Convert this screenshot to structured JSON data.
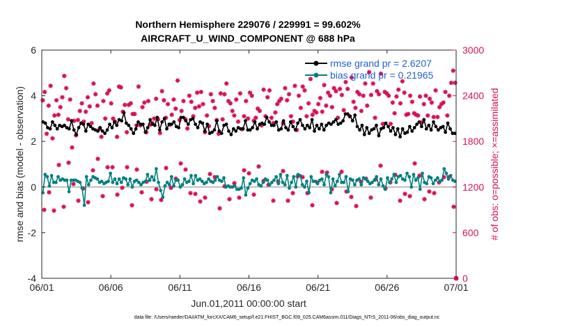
{
  "colors": {
    "rmse": "#000000",
    "bias": "#00807f",
    "obs": "#d6115a",
    "zero_line": "#bdbdbd",
    "legend_text": "#1f5fd6"
  },
  "chart_data": {
    "type": "line",
    "title_line1": "Northern Hemisphere 229076 / 229991 = 99.602%",
    "title_line2": "AIRCRAFT_U_WIND_COMPONENT @ 688 hPa",
    "xlabel": "Jun.01,2011 00:00:00 start",
    "ylabel_left": "rmse and bias (model - observation)",
    "ylabel_right": "# of obs: o=possible; ×=assimilated",
    "x_tick_labels": [
      "06/01",
      "06/06",
      "06/11",
      "06/16",
      "06/21",
      "06/26",
      "07/01"
    ],
    "x_range_days": [
      0,
      30
    ],
    "y_left_ticks": [
      "-4",
      "-2",
      "0",
      "2",
      "4",
      "6"
    ],
    "y_left_range": [
      -4,
      6
    ],
    "y_right_ticks": [
      "0",
      "600",
      "1200",
      "1800",
      "2400",
      "3000"
    ],
    "y_right_range": [
      0,
      3000
    ],
    "grid": false,
    "legend_position": "top-right",
    "legend": [
      "rmse grand pr = 2.6207",
      "bias grand pr = 0.21965"
    ],
    "series": [
      {
        "name": "rmse grand pr = 2.6207",
        "axis": "left",
        "values": [
          2.85,
          2.8,
          2.6,
          2.55,
          2.85,
          2.7,
          2.55,
          2.7,
          2.65,
          2.7,
          2.6,
          2.55,
          2.9,
          2.5,
          2.3,
          2.6,
          2.8,
          2.75,
          2.45,
          2.75,
          2.65,
          2.55,
          2.5,
          2.45,
          2.6,
          2.45,
          2.35,
          2.5,
          2.75,
          2.6,
          2.85,
          2.7,
          2.95,
          2.9,
          3.25,
          2.8,
          2.7,
          2.55,
          2.35,
          2.55,
          2.85,
          2.75,
          2.75,
          2.4,
          2.6,
          2.95,
          2.75,
          2.7,
          3.05,
          2.5,
          2.85,
          3.0,
          2.55,
          2.75,
          2.75,
          2.85,
          2.65,
          2.6,
          3.05,
          3.05,
          2.9,
          2.75,
          2.95,
          3.0,
          2.75,
          2.6,
          2.85,
          2.8,
          2.45,
          2.75,
          2.35,
          2.4,
          2.5,
          2.9,
          2.45,
          2.35,
          2.7,
          2.75,
          2.45,
          2.3,
          2.55,
          2.45,
          2.6,
          2.55,
          2.55,
          2.9,
          2.5,
          2.5,
          2.6,
          2.85,
          2.55,
          2.75,
          2.8,
          2.75,
          3.05,
          2.85,
          2.7,
          2.7,
          2.85,
          2.5,
          2.55,
          2.9,
          2.6,
          2.5,
          2.85,
          2.65,
          2.5,
          2.8,
          2.95,
          2.7,
          2.55,
          2.7,
          2.6,
          2.95,
          2.45,
          2.7,
          2.55,
          2.75,
          2.5,
          2.7,
          2.8,
          2.75,
          2.85,
          2.95,
          2.75,
          2.8,
          2.9,
          3.2,
          3.2,
          3.1,
          2.9,
          3.15,
          2.65,
          2.5,
          2.7,
          2.3,
          2.6,
          2.35,
          2.5,
          2.55,
          2.7,
          2.25,
          2.55,
          2.6,
          2.8,
          2.65,
          2.45,
          2.6,
          2.3,
          2.55,
          2.2,
          2.55,
          2.35,
          2.4,
          2.65,
          2.45,
          2.6,
          2.75,
          2.85,
          2.65,
          2.95,
          2.55,
          2.7,
          2.5,
          2.85,
          2.65,
          2.5,
          2.6,
          2.65,
          2.4,
          2.8,
          2.55,
          2.35,
          2.35
        ]
      },
      {
        "name": "bias grand pr = 0.21965",
        "axis": "left",
        "values": [
          -0.25,
          0.55,
          0.45,
          0.05,
          0.5,
          0.2,
          0.2,
          0.45,
          0.3,
          0.35,
          0.3,
          0.3,
          -0.2,
          0.3,
          0.3,
          0.3,
          0.25,
          0.2,
          -0.05,
          -0.8,
          0.45,
          0.1,
          0.3,
          0.45,
          0.4,
          0.35,
          0.2,
          0.25,
          0.15,
          0.2,
          0.25,
          0.6,
          0.2,
          0.35,
          0.15,
          0.35,
          0.2,
          0.4,
          0.35,
          0.1,
          0.35,
          0.0,
          0.25,
          0.3,
          0.2,
          0.1,
          0.2,
          0.25,
          0.55,
          0.3,
          0.45,
          0.3,
          0.8,
          0.2,
          -0.15,
          -0.45,
          0.05,
          0.2,
          0.1,
          0.45,
          0.05,
          0.3,
          0.3,
          0.0,
          0.1,
          0.35,
          0.2,
          0.25,
          0.5,
          0.15,
          0.5,
          0.3,
          0.35,
          0.25,
          0.15,
          0.2,
          0.35,
          0.25,
          0.2,
          0.3,
          0.45,
          0.3,
          0.25,
          0.4,
          0.0,
          0.05,
          0.0,
          0.0,
          0.05,
          -0.1,
          -0.1,
          -0.05,
          0.4,
          -0.35,
          -0.05,
          0.15,
          0.3,
          0.25,
          0.35,
          0.1,
          0.05,
          0.2,
          0.35,
          0.3,
          0.1,
          0.2,
          0.3,
          0.45,
          0.15,
          0.55,
          0.2,
          0.1,
          0.5,
          -0.05,
          0.2,
          0.45,
          0.0,
          0.55,
          0.5,
          0.1,
          0.0,
          0.25,
          -0.25,
          0.45,
          0.25,
          0.25,
          0.15,
          0.3,
          0.35,
          0.1,
          0.55,
          0.45,
          -0.25,
          0.35,
          0.05,
          0.25,
          0.55,
          0.2,
          0.2,
          0.45,
          -0.2,
          0.35,
          0.3,
          0.1,
          0.3,
          0.35,
          0.1,
          0.4,
          0.35,
          0.25,
          0.15,
          0.2,
          0.3,
          0.45,
          0.1,
          0.35,
          0.05,
          -0.1,
          0.4,
          0.2,
          0.35,
          0.55,
          0.2,
          0.45,
          0.5,
          0.35,
          0.3,
          0.6,
          0.45,
          0.0,
          0.55,
          0.3,
          0.4,
          -0.1,
          0.6,
          0.2,
          0.15,
          0.45,
          0.4,
          0.15,
          0.3,
          0.4,
          0.25,
          0.3,
          0.8,
          0.6,
          0.35,
          0.5,
          0.3,
          0.25
        ]
      },
      {
        "name": "",
        "axis": "right",
        "marker": "asterisk",
        "values": [
          2340,
          2450,
          1900,
          2270,
          2530,
          1840,
          2140,
          2340,
          2150,
          2250,
          2380,
          2660,
          2500,
          2090,
          2350,
          1720,
          2070,
          1880,
          2080,
          2200,
          2300,
          2060,
          2190,
          2380,
          2260,
          2040,
          2560,
          2420,
          2270,
          1960,
          1860,
          2330,
          2100,
          2430,
          2470,
          2300,
          2100,
          2060,
          1860,
          2520,
          2510,
          2190,
          2280,
          1920,
          2280,
          2300,
          2160,
          2160,
          2010,
          2520,
          2010,
          2250,
          2310,
          1920,
          2330,
          2020,
          2040,
          2100,
          2360,
          2090,
          1910,
          2460,
          2340,
          2110,
          2290,
          2020,
          2150,
          2350,
          2230,
          2600,
          2080,
          2200,
          2330,
          2090,
          1970,
          2400,
          2320,
          2130,
          2240,
          2440,
          2260,
          2450,
          2290,
          1920,
          2140,
          2000,
          2420,
          2330,
          2240,
          2080,
          1900,
          2430,
          2090,
          2420,
          2560,
          2330,
          2300,
          2200,
          2140,
          2350,
          2060,
          2430,
          1960,
          2130,
          2330,
          2100,
          2440,
          2400,
          2070,
          2110,
          2230,
          2200,
          2010,
          2480,
          2130,
          2380,
          2470,
          2110,
          2040,
          2180,
          2290,
          2330,
          2360,
          2040,
          2500,
          2340,
          2420,
          2130,
          2060,
          2530,
          1950,
          2400,
          2240,
          2520,
          2470,
          2130,
          2300,
          2620,
          2150,
          2200,
          2180,
          2290,
          2370,
          2190,
          2540,
          2270,
          2440,
          2400,
          2250,
          2500,
          2460,
          2110,
          2490,
          2410,
          2210,
          2580,
          2490,
          2130,
          2640,
          2320,
          2240,
          2450,
          2420,
          2200,
          2400,
          2560,
          2270,
          2710,
          2410,
          2560,
          2110,
          2460,
          2420,
          2690,
          2030,
          2450,
          2430,
          2400,
          2030,
          2310,
          2170,
          2390,
          2480,
          2300,
          2590,
          2440,
          2150,
          2160,
          2400,
          2320,
          2170,
          2150,
          2140,
          2390,
          2050,
          2290,
          2400,
          2140,
          2360,
          2310,
          2120,
          2470,
          2120,
          2250,
          2290,
          2310,
          2450,
          2140,
          2400,
          2570,
          2730,
          2570
        ]
      },
      {
        "name": "",
        "axis": "right",
        "marker": "asterisk-low",
        "values": [
          900,
          1130,
          890,
          1490,
          940,
          1520,
          1240,
          1020,
          1180,
          1000,
          1420,
          1570,
          1080,
          1460,
          1460,
          1100,
          1190,
          1460,
          960,
          1430,
          1130,
          1270,
          1040,
          1170,
          1030,
          1450,
          1190,
          1310,
          1510,
          1430,
          1120,
          1110,
          1010,
          1060,
          1370,
          1330,
          920,
          1210,
          1040,
          1250,
          1060,
          1420,
          1380,
          1100,
          1470,
          1280,
          1230,
          1020,
          1270,
          1410,
          1020,
          1120,
          1340,
          1330,
          1120,
          960,
          1260,
          1400,
          1390,
          1170,
          990,
          1400,
          1140,
          1070,
          950,
          1270,
          1310,
          1060,
          1300,
          1480,
          1180,
          1260,
          1360,
          1020,
          1110,
          1080,
          1510,
          1350,
          1040,
          1140,
          1120,
          1260,
          1330,
          1330,
          940
        ]
      }
    ]
  },
  "footnote": "data file: /Users/raeder/DAI/ATM_forcXX/CAM6_setup/f.e21.FHIST_BGC.f09_025.CAM6assim.011/Diags_NTrS_2011-06/obs_diag_output.nc"
}
